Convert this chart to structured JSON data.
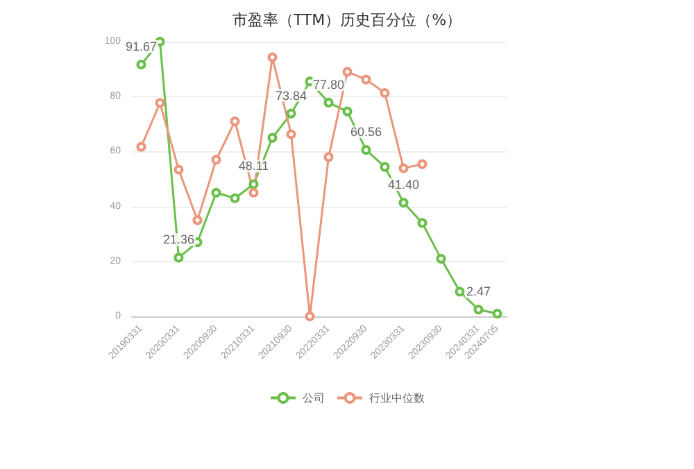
{
  "chart_data": {
    "type": "line",
    "title": "市盈率（TTM）历史百分位（%）",
    "categories": [
      "20190331",
      null,
      "20200331",
      null,
      "20200930",
      null,
      "20210331",
      null,
      "20210930",
      null,
      "20220331",
      null,
      "20220930",
      null,
      "20230331",
      null,
      "20230930",
      null,
      "20240331",
      "20240705"
    ],
    "series": [
      {
        "name": "公司",
        "color": "#6abf4b",
        "values": [
          91.67,
          100,
          21.36,
          27,
          45,
          43,
          48.11,
          65,
          73.84,
          85.5,
          77.8,
          74.6,
          60.56,
          54.4,
          41.4,
          34,
          21,
          9,
          2.47,
          1
        ],
        "value_labels": [
          "91.67",
          null,
          "21.36",
          null,
          null,
          null,
          "48.11",
          null,
          "73.84",
          null,
          "77.80",
          null,
          "60.56",
          null,
          "41.40",
          null,
          null,
          null,
          "2.47",
          null
        ]
      },
      {
        "name": "行业中位数",
        "color": "#e9967a",
        "values": [
          61.7,
          77.7,
          53.4,
          35,
          57,
          71,
          45,
          94.3,
          66.3,
          0,
          58,
          89,
          86.2,
          81.3,
          53.9,
          55.4,
          null,
          null,
          null,
          null
        ]
      }
    ],
    "ylim": [
      0,
      100
    ],
    "yticks": [
      0,
      20,
      40,
      60,
      80,
      100
    ],
    "grid": "y",
    "legend": "bottom",
    "marker": "circle",
    "line_style": "solid"
  }
}
